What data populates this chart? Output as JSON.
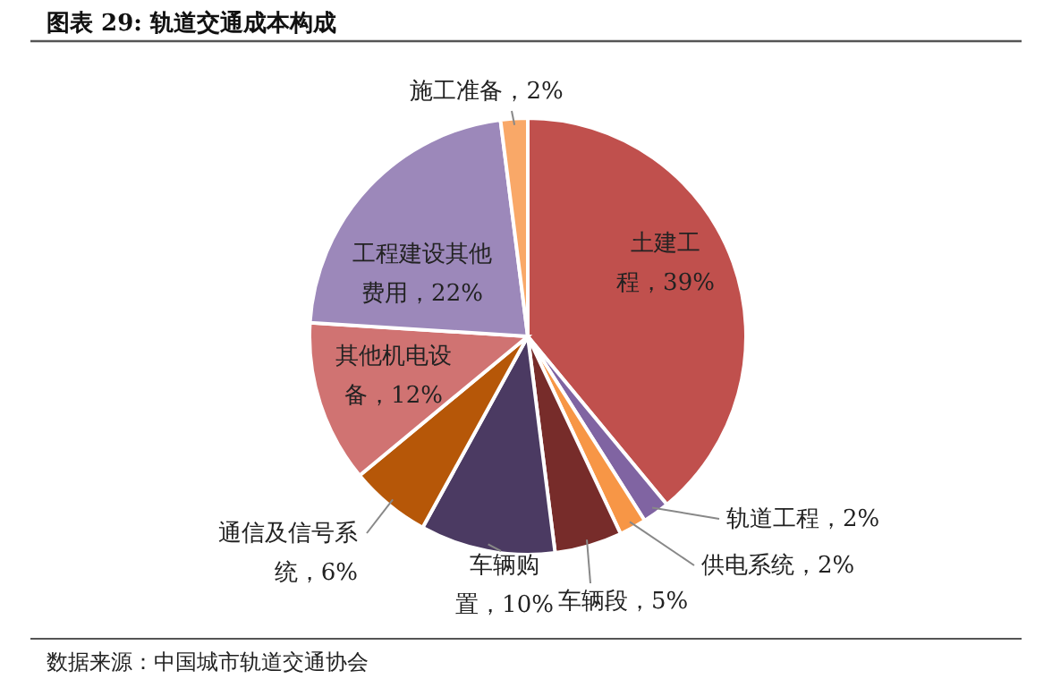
{
  "chart_data": {
    "type": "pie",
    "title": "图表 29: 轨道交通成本构成",
    "categories": [
      "土建工程",
      "轨道工程",
      "供电系统",
      "车辆段",
      "车辆购置",
      "通信及信号系统",
      "其他机电设备",
      "工程建设其他费用",
      "施工准备"
    ],
    "values": [
      39,
      2,
      2,
      5,
      10,
      6,
      12,
      22,
      2
    ],
    "colors": [
      "#c0504d",
      "#8064a2",
      "#f79646",
      "#772c2a",
      "#4b3a62",
      "#b65708",
      "#d07372",
      "#9c88ba",
      "#f9a868"
    ],
    "value_labels": [
      "39%",
      "2%",
      "2%",
      "5%",
      "10%",
      "6%",
      "12%",
      "22%",
      "2%"
    ],
    "annotations": [
      "数据来源：中国城市轨道交通协会"
    ]
  }
}
